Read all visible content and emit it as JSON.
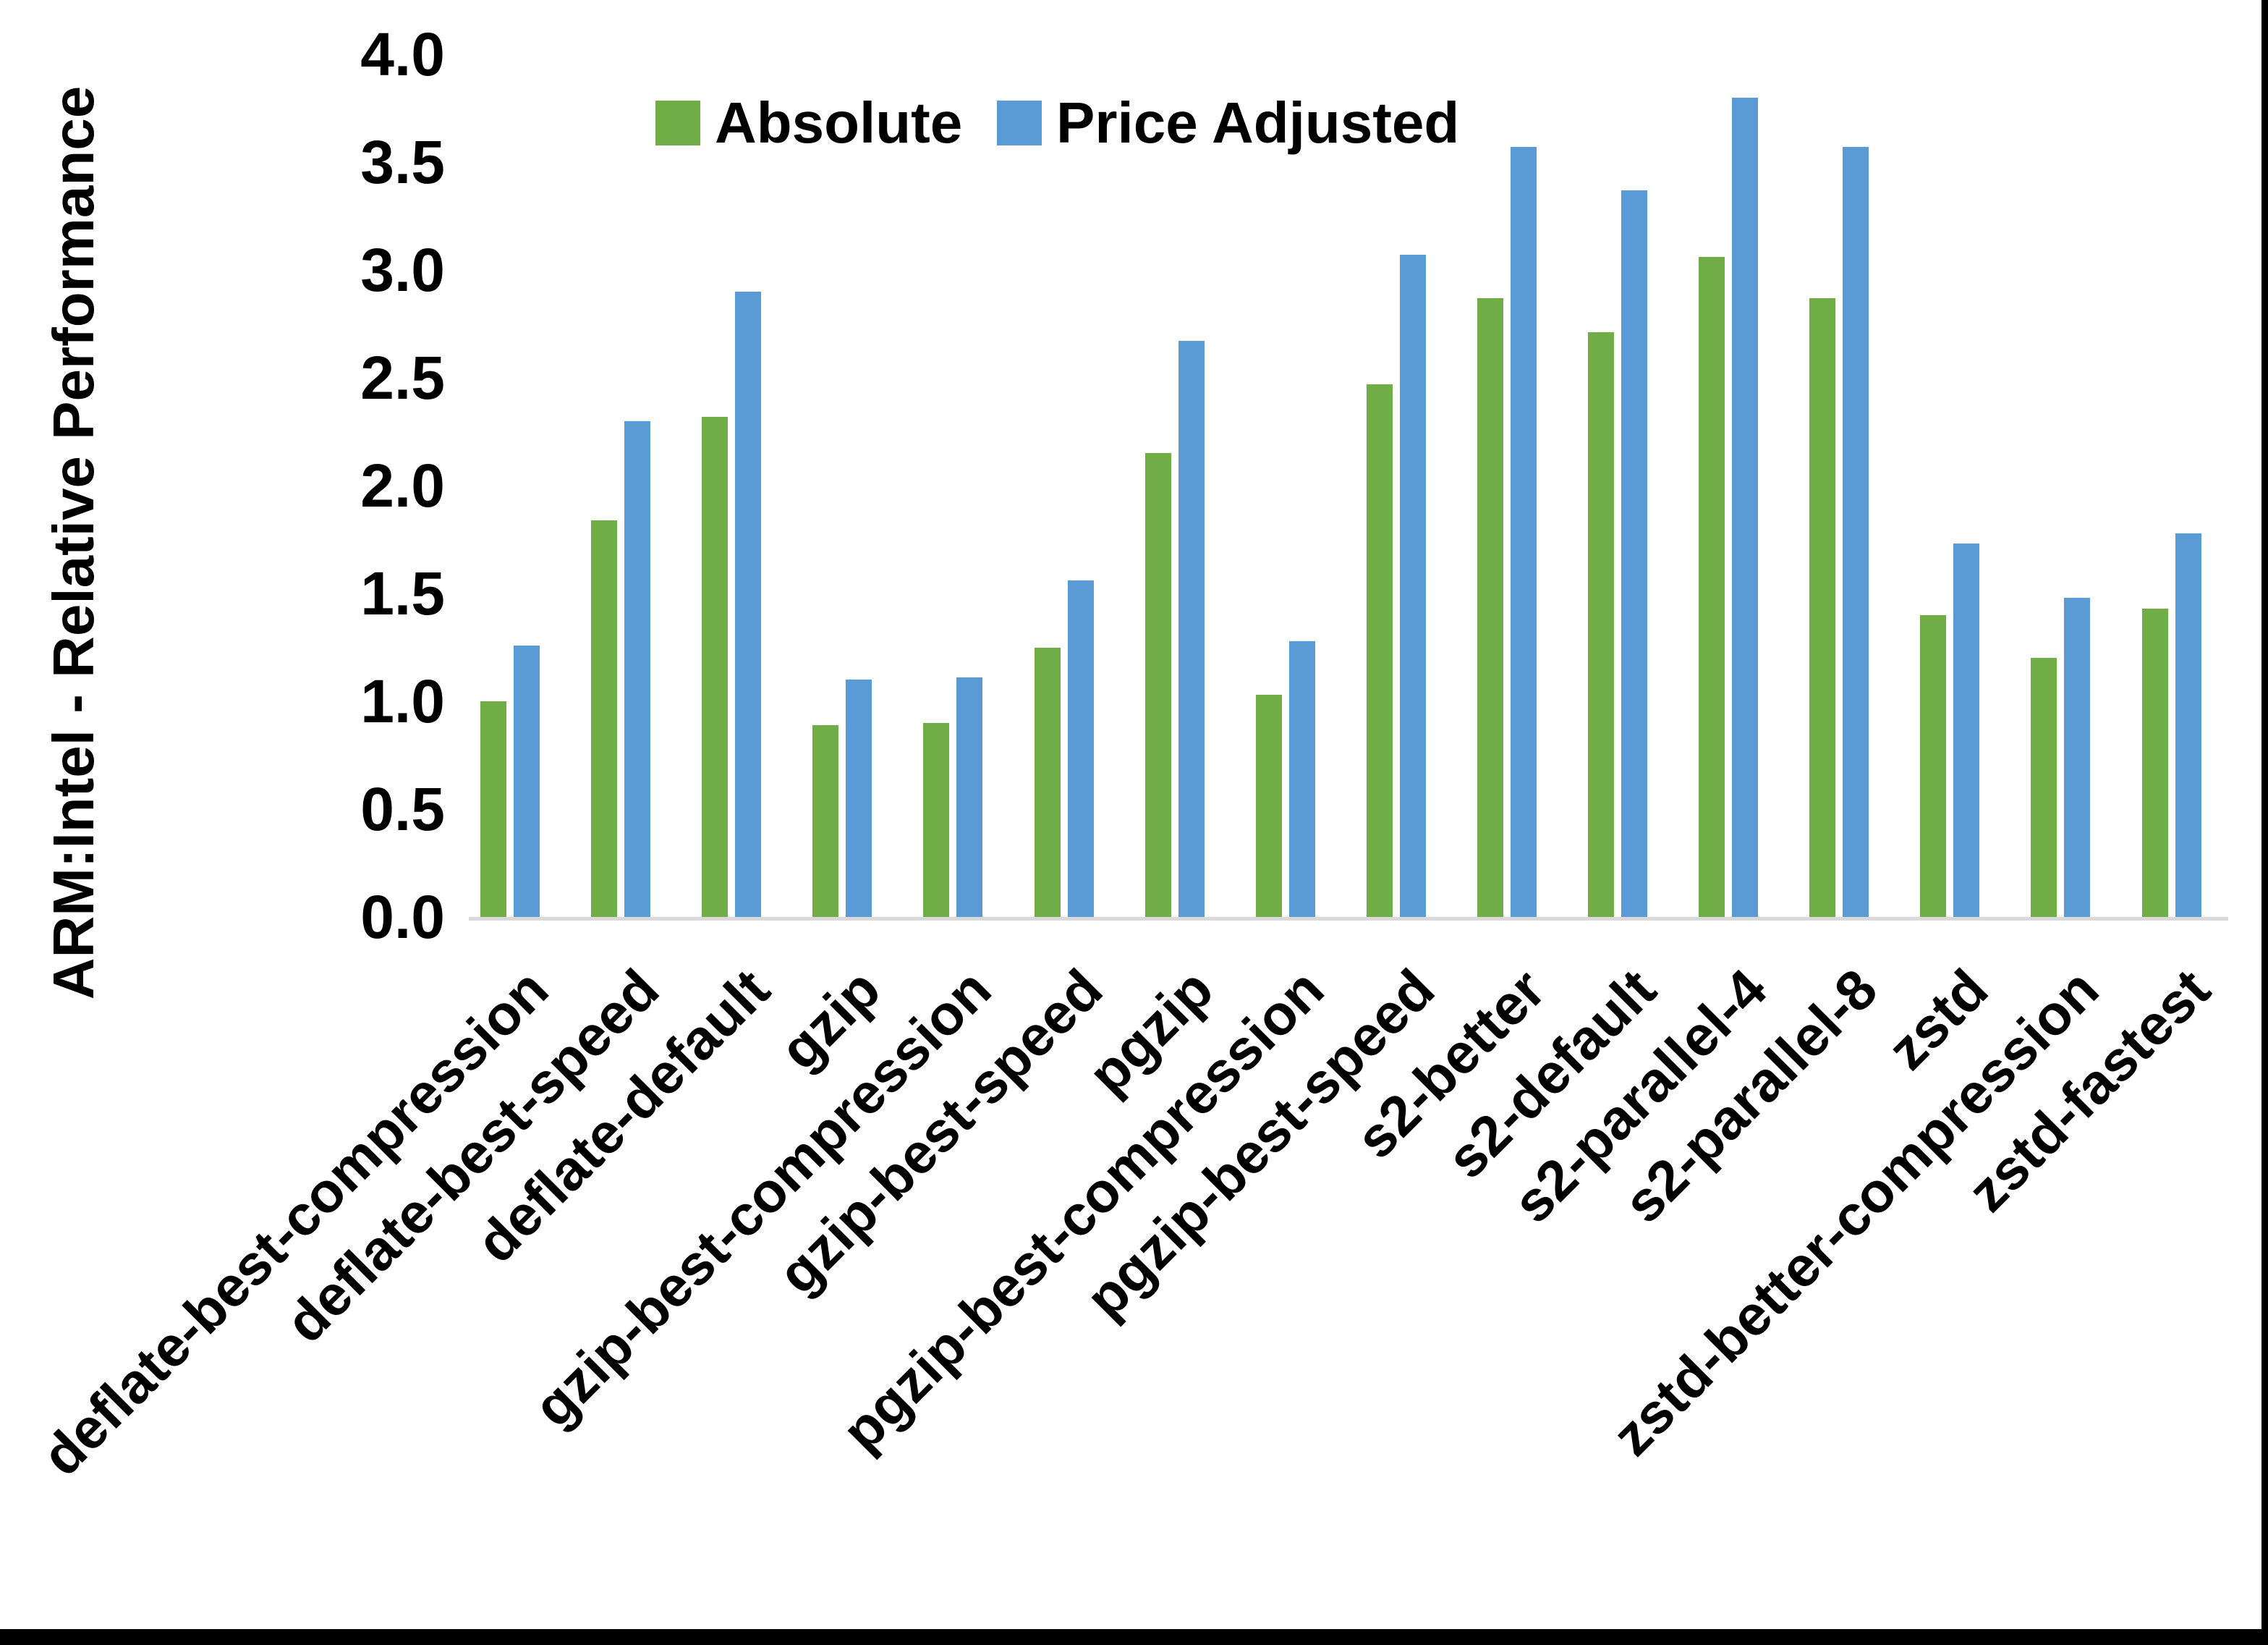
{
  "chart_data": {
    "type": "bar",
    "title": "",
    "ylabel": "ARM:Intel - Relative Performance",
    "xlabel": "",
    "ylim": [
      0.0,
      4.0
    ],
    "ytick_step": 0.5,
    "ytick_decimals": 1,
    "grid": false,
    "legend_position": "top",
    "categories": [
      "deflate-best-compression",
      "deflate-best-speed",
      "deflate-default",
      "gzip",
      "gzip-best-compression",
      "gzip-best-speed",
      "pgzip",
      "pgzip-best-compression",
      "pgzip-best-speed",
      "s2-better",
      "s2-default",
      "s2-parallel-4",
      "s2-parallel-8",
      "zstd",
      "zstd-better-compression",
      "zstd-fastest"
    ],
    "series": [
      {
        "name": "Absolute",
        "color": "#70AD47",
        "values": [
          1.0,
          1.84,
          2.32,
          0.89,
          0.9,
          1.25,
          2.15,
          1.03,
          2.47,
          2.87,
          2.71,
          3.06,
          2.87,
          1.4,
          1.2,
          1.43
        ]
      },
      {
        "name": "Price Adjusted",
        "color": "#5B9BD5",
        "values": [
          1.26,
          2.3,
          2.9,
          1.1,
          1.11,
          1.56,
          2.67,
          1.28,
          3.07,
          3.57,
          3.37,
          3.8,
          3.57,
          1.73,
          1.48,
          1.78
        ]
      }
    ]
  },
  "colors": {
    "axis_line": "#D9D9D9",
    "text": "#000000",
    "frame_border": "#000000",
    "background": "#FFFFFF"
  }
}
